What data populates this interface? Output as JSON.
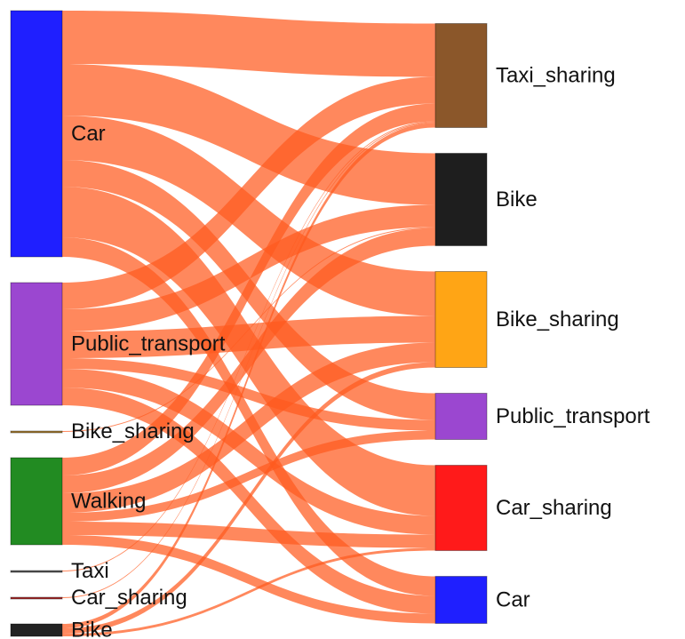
{
  "chart_data": {
    "type": "sankey",
    "link_color": "#ff5a1f",
    "nodes": [
      {
        "name": "Car",
        "color": "#1f1fff",
        "column": 0
      },
      {
        "name": "Public_transport",
        "color": "#9b47d0",
        "column": 0
      },
      {
        "name": "Bike_sharing",
        "color": "#a07830",
        "column": 0
      },
      {
        "name": "Walking",
        "color": "#228b22",
        "column": 0
      },
      {
        "name": "Taxi",
        "color": "#555555",
        "column": 0
      },
      {
        "name": "Car_sharing",
        "color": "#a52a2a",
        "column": 0
      },
      {
        "name": "Bike",
        "color": "#222222",
        "column": 0
      },
      {
        "name": "Taxi_sharing",
        "color": "#8b572a",
        "column": 1
      },
      {
        "name": "Bike",
        "color": "#1e1e1e",
        "column": 1
      },
      {
        "name": "Bike_sharing",
        "color": "#ffa515",
        "column": 1
      },
      {
        "name": "Public_transport",
        "color": "#9b47d0",
        "column": 1
      },
      {
        "name": "Car_sharing",
        "color": "#ff1a1a",
        "column": 1
      },
      {
        "name": "Car",
        "color": "#1f1fff",
        "column": 1
      }
    ],
    "links": [
      {
        "source": 0,
        "target": 7,
        "value": 60
      },
      {
        "source": 0,
        "target": 8,
        "value": 58
      },
      {
        "source": 0,
        "target": 9,
        "value": 50
      },
      {
        "source": 0,
        "target": 10,
        "value": 30
      },
      {
        "source": 0,
        "target": 11,
        "value": 57
      },
      {
        "source": 0,
        "target": 12,
        "value": 22
      },
      {
        "source": 1,
        "target": 7,
        "value": 30
      },
      {
        "source": 1,
        "target": 8,
        "value": 25
      },
      {
        "source": 1,
        "target": 9,
        "value": 30
      },
      {
        "source": 1,
        "target": 10,
        "value": 12
      },
      {
        "source": 1,
        "target": 11,
        "value": 21
      },
      {
        "source": 1,
        "target": 12,
        "value": 20
      },
      {
        "source": 2,
        "target": 8,
        "value": 1
      },
      {
        "source": 3,
        "target": 7,
        "value": 20
      },
      {
        "source": 3,
        "target": 8,
        "value": 20
      },
      {
        "source": 3,
        "target": 9,
        "value": 22
      },
      {
        "source": 3,
        "target": 10,
        "value": 10
      },
      {
        "source": 3,
        "target": 11,
        "value": 15
      },
      {
        "source": 3,
        "target": 12,
        "value": 11
      },
      {
        "source": 4,
        "target": 7,
        "value": 1
      },
      {
        "source": 5,
        "target": 7,
        "value": 1
      },
      {
        "source": 6,
        "target": 7,
        "value": 5
      },
      {
        "source": 6,
        "target": 9,
        "value": 6
      },
      {
        "source": 6,
        "target": 11,
        "value": 3
      }
    ]
  }
}
